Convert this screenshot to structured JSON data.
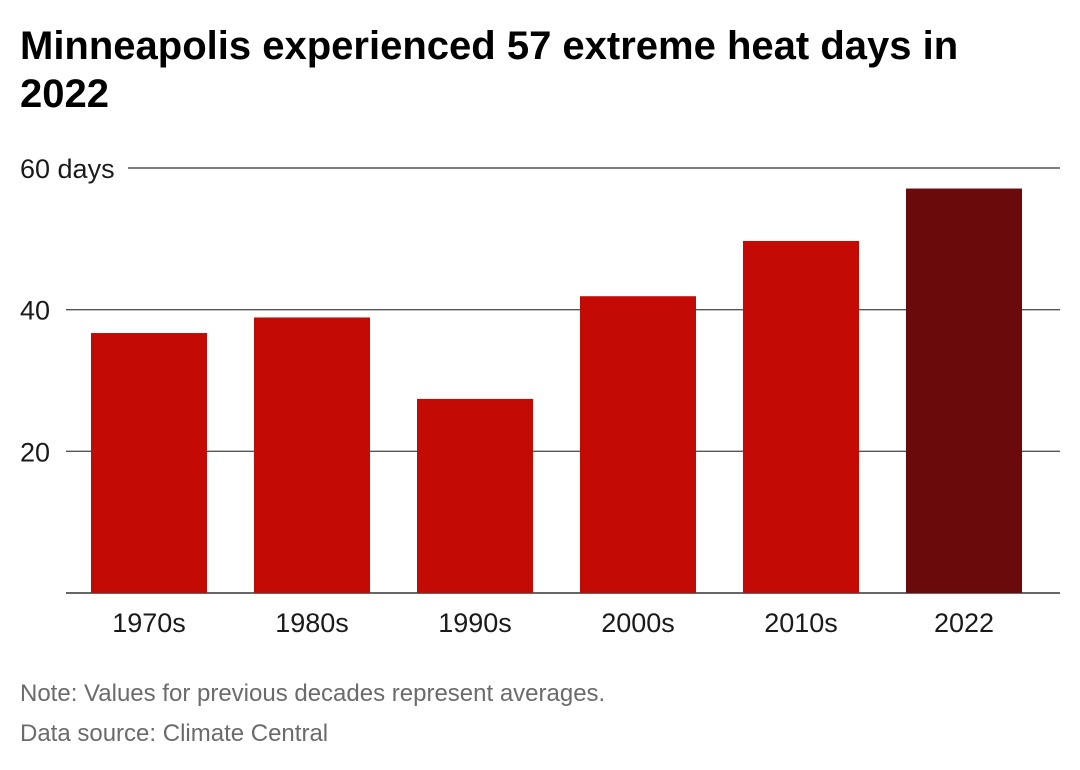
{
  "chart_data": {
    "type": "bar",
    "title": "Minneapolis experienced 57 extreme heat days in 2022",
    "categories": [
      "1970s",
      "1980s",
      "1990s",
      "2000s",
      "2010s",
      "2022"
    ],
    "values": [
      36.7,
      38.9,
      27.4,
      41.9,
      49.7,
      57.1
    ],
    "ylim": [
      0,
      60
    ],
    "yticks": [
      20,
      40,
      60
    ],
    "ytick_labels": [
      "20",
      "40",
      "60 days"
    ],
    "xlabel": "",
    "ylabel": "",
    "grid": true,
    "colors": {
      "default_bar": "#c40a04",
      "highlight_bar": "#6a0a0a",
      "grid": "#555555",
      "baseline": "#333333"
    },
    "highlight_category": "2022",
    "note": "Note: Values for previous decades represent averages.",
    "source": "Data source: Climate Central"
  }
}
